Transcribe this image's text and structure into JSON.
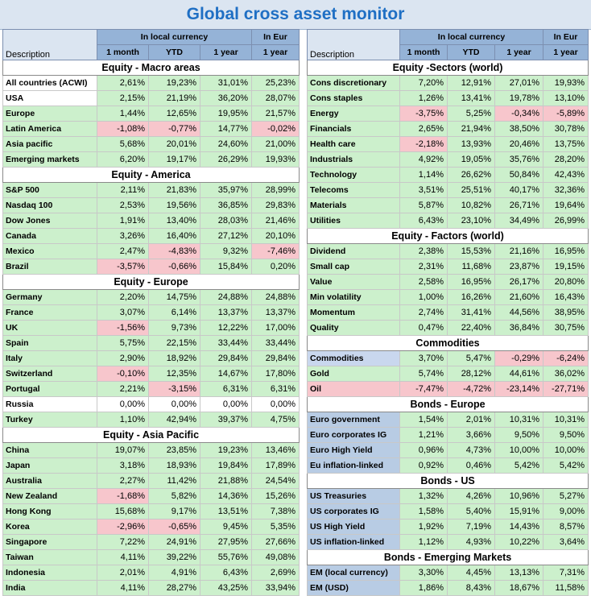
{
  "title": "Global cross asset monitor",
  "header": {
    "description": "Description",
    "local_currency": "In local currency",
    "in_eur": "In Eur",
    "one_month": "1 month",
    "ytd": "YTD",
    "one_year": "1 year",
    "one_year_eur": "1 year"
  },
  "colors": {
    "positive": "#ccf0cc",
    "negative": "#f7c6cc",
    "header": "#95b3d7",
    "title_text": "#1f6fc4"
  },
  "left": [
    {
      "title": "Equity - Macro areas",
      "rows": [
        {
          "d": "All countries (ACWI)",
          "v": [
            "2,61%",
            "19,23%",
            "31,01%",
            "25,23%"
          ],
          "dc": "plain"
        },
        {
          "d": "USA",
          "v": [
            "2,15%",
            "21,19%",
            "36,20%",
            "28,07%"
          ],
          "dc": "plain"
        },
        {
          "d": "Europe",
          "v": [
            "1,44%",
            "12,65%",
            "19,95%",
            "21,57%"
          ],
          "dc": "green"
        },
        {
          "d": "Latin America",
          "v": [
            "-1,08%",
            "-0,77%",
            "14,77%",
            "-0,02%"
          ],
          "dc": "green"
        },
        {
          "d": "Asia pacific",
          "v": [
            "5,68%",
            "20,01%",
            "24,60%",
            "21,00%"
          ],
          "dc": "green"
        },
        {
          "d": "Emerging markets",
          "v": [
            "6,20%",
            "19,17%",
            "26,29%",
            "19,93%"
          ],
          "dc": "green"
        }
      ]
    },
    {
      "title": "Equity - America",
      "rows": [
        {
          "d": "S&P 500",
          "v": [
            "2,11%",
            "21,83%",
            "35,97%",
            "28,99%"
          ],
          "dc": "green"
        },
        {
          "d": "Nasdaq 100",
          "v": [
            "2,53%",
            "19,56%",
            "36,85%",
            "29,83%"
          ],
          "dc": "green"
        },
        {
          "d": "Dow Jones",
          "v": [
            "1,91%",
            "13,40%",
            "28,03%",
            "21,46%"
          ],
          "dc": "green"
        },
        {
          "d": "Canada",
          "v": [
            "3,26%",
            "16,40%",
            "27,12%",
            "20,10%"
          ],
          "dc": "green"
        },
        {
          "d": "Mexico",
          "v": [
            "2,47%",
            "-4,83%",
            "9,32%",
            "-7,46%"
          ],
          "dc": "green"
        },
        {
          "d": "Brazil",
          "v": [
            "-3,57%",
            "-0,66%",
            "15,84%",
            "0,20%"
          ],
          "dc": "green"
        }
      ]
    },
    {
      "title": "Equity - Europe",
      "rows": [
        {
          "d": "Germany",
          "v": [
            "2,20%",
            "14,75%",
            "24,88%",
            "24,88%"
          ],
          "dc": "green"
        },
        {
          "d": "France",
          "v": [
            "3,07%",
            "6,14%",
            "13,37%",
            "13,37%"
          ],
          "dc": "green"
        },
        {
          "d": "UK",
          "v": [
            "-1,56%",
            "9,73%",
            "12,22%",
            "17,00%"
          ],
          "dc": "green"
        },
        {
          "d": "Spain",
          "v": [
            "5,75%",
            "22,15%",
            "33,44%",
            "33,44%"
          ],
          "dc": "green"
        },
        {
          "d": "Italy",
          "v": [
            "2,90%",
            "18,92%",
            "29,84%",
            "29,84%"
          ],
          "dc": "green"
        },
        {
          "d": "Switzerland",
          "v": [
            "-0,10%",
            "12,35%",
            "14,67%",
            "17,80%"
          ],
          "dc": "green"
        },
        {
          "d": "Portugal",
          "v": [
            "2,21%",
            "-3,15%",
            "6,31%",
            "6,31%"
          ],
          "dc": "green"
        },
        {
          "d": "Russia",
          "v": [
            "0,00%",
            "0,00%",
            "0,00%",
            "0,00%"
          ],
          "dc": "plain"
        },
        {
          "d": "Turkey",
          "v": [
            "1,10%",
            "42,94%",
            "39,37%",
            "4,75%"
          ],
          "dc": "green"
        }
      ]
    },
    {
      "title": "Equity - Asia Pacific",
      "rows": [
        {
          "d": "China",
          "v": [
            "19,07%",
            "23,85%",
            "19,23%",
            "13,46%"
          ],
          "dc": "green"
        },
        {
          "d": "Japan",
          "v": [
            "3,18%",
            "18,93%",
            "19,84%",
            "17,89%"
          ],
          "dc": "green"
        },
        {
          "d": "Australia",
          "v": [
            "2,27%",
            "11,42%",
            "21,88%",
            "24,54%"
          ],
          "dc": "green"
        },
        {
          "d": "New Zealand",
          "v": [
            "-1,68%",
            "5,82%",
            "14,36%",
            "15,26%"
          ],
          "dc": "green"
        },
        {
          "d": "Hong Kong",
          "v": [
            "15,68%",
            "9,17%",
            "13,51%",
            "7,38%"
          ],
          "dc": "green"
        },
        {
          "d": "Korea",
          "v": [
            "-2,96%",
            "-0,65%",
            "9,45%",
            "5,35%"
          ],
          "dc": "green"
        },
        {
          "d": "Singapore",
          "v": [
            "7,22%",
            "24,91%",
            "27,95%",
            "27,66%"
          ],
          "dc": "green"
        },
        {
          "d": "Taiwan",
          "v": [
            "4,11%",
            "39,22%",
            "55,76%",
            "49,08%"
          ],
          "dc": "green"
        },
        {
          "d": "Indonesia",
          "v": [
            "2,01%",
            "4,91%",
            "6,43%",
            "2,69%"
          ],
          "dc": "green"
        },
        {
          "d": "India",
          "v": [
            "4,11%",
            "28,27%",
            "43,25%",
            "33,94%"
          ],
          "dc": "green"
        }
      ]
    }
  ],
  "right": [
    {
      "title": "Equity -Sectors (world)",
      "rows": [
        {
          "d": "Cons discretionary",
          "v": [
            "7,20%",
            "12,91%",
            "27,01%",
            "19,93%"
          ],
          "dc": "green"
        },
        {
          "d": "Cons staples",
          "v": [
            "1,26%",
            "13,41%",
            "19,78%",
            "13,10%"
          ],
          "dc": "green"
        },
        {
          "d": "Energy",
          "v": [
            "-3,75%",
            "5,25%",
            "-0,34%",
            "-5,89%"
          ],
          "dc": "green"
        },
        {
          "d": "Financials",
          "v": [
            "2,65%",
            "21,94%",
            "38,50%",
            "30,78%"
          ],
          "dc": "green"
        },
        {
          "d": "Health care",
          "v": [
            "-2,18%",
            "13,93%",
            "20,46%",
            "13,75%"
          ],
          "dc": "green"
        },
        {
          "d": "Industrials",
          "v": [
            "4,92%",
            "19,05%",
            "35,76%",
            "28,20%"
          ],
          "dc": "green"
        },
        {
          "d": "Technology",
          "v": [
            "1,14%",
            "26,62%",
            "50,84%",
            "42,43%"
          ],
          "dc": "green"
        },
        {
          "d": "Telecoms",
          "v": [
            "3,51%",
            "25,51%",
            "40,17%",
            "32,36%"
          ],
          "dc": "green"
        },
        {
          "d": "Materials",
          "v": [
            "5,87%",
            "10,82%",
            "26,71%",
            "19,64%"
          ],
          "dc": "green"
        },
        {
          "d": "Utilities",
          "v": [
            "6,43%",
            "23,10%",
            "34,49%",
            "26,99%"
          ],
          "dc": "green"
        }
      ]
    },
    {
      "title": "Equity - Factors (world)",
      "rows": [
        {
          "d": "Dividend",
          "v": [
            "2,38%",
            "15,53%",
            "21,16%",
            "16,95%"
          ],
          "dc": "green"
        },
        {
          "d": "Small cap",
          "v": [
            "2,31%",
            "11,68%",
            "23,87%",
            "19,15%"
          ],
          "dc": "green"
        },
        {
          "d": "Value",
          "v": [
            "2,58%",
            "16,95%",
            "26,17%",
            "20,80%"
          ],
          "dc": "green"
        },
        {
          "d": "Min volatility",
          "v": [
            "1,00%",
            "16,26%",
            "21,60%",
            "16,43%"
          ],
          "dc": "green"
        },
        {
          "d": "Momentum",
          "v": [
            "2,74%",
            "31,41%",
            "44,56%",
            "38,95%"
          ],
          "dc": "green"
        },
        {
          "d": "Quality",
          "v": [
            "0,47%",
            "22,40%",
            "36,84%",
            "30,75%"
          ],
          "dc": "green"
        }
      ]
    },
    {
      "title": "Commodities",
      "rows": [
        {
          "d": "Commodities",
          "v": [
            "3,70%",
            "5,47%",
            "-0,29%",
            "-6,24%"
          ],
          "dc": "blue"
        },
        {
          "d": "Gold",
          "v": [
            "5,74%",
            "28,12%",
            "44,61%",
            "36,02%"
          ],
          "dc": "green"
        },
        {
          "d": "Oil",
          "v": [
            "-7,47%",
            "-4,72%",
            "-23,14%",
            "-27,71%"
          ],
          "dc": "pink"
        }
      ]
    },
    {
      "title": "Bonds - Europe",
      "rows": [
        {
          "d": "Euro government",
          "v": [
            "1,54%",
            "2,01%",
            "10,31%",
            "10,31%"
          ],
          "dc": "blue2"
        },
        {
          "d": "Euro corporates IG",
          "v": [
            "1,21%",
            "3,66%",
            "9,50%",
            "9,50%"
          ],
          "dc": "blue2"
        },
        {
          "d": "Euro High Yield",
          "v": [
            "0,96%",
            "4,73%",
            "10,00%",
            "10,00%"
          ],
          "dc": "blue2"
        },
        {
          "d": "Eu inflation-linked",
          "v": [
            "0,92%",
            "0,46%",
            "5,42%",
            "5,42%"
          ],
          "dc": "blue2"
        }
      ]
    },
    {
      "title": "Bonds - US",
      "rows": [
        {
          "d": "US Treasuries",
          "v": [
            "1,32%",
            "4,26%",
            "10,96%",
            "5,27%"
          ],
          "dc": "blue2"
        },
        {
          "d": "US corporates IG",
          "v": [
            "1,58%",
            "5,40%",
            "15,91%",
            "9,00%"
          ],
          "dc": "blue2"
        },
        {
          "d": "US High Yield",
          "v": [
            "1,92%",
            "7,19%",
            "14,43%",
            "8,57%"
          ],
          "dc": "blue2"
        },
        {
          "d": "US inflation-linked",
          "v": [
            "1,12%",
            "4,93%",
            "10,22%",
            "3,64%"
          ],
          "dc": "blue2"
        }
      ]
    },
    {
      "title": "Bonds - Emerging Markets",
      "rows": [
        {
          "d": "EM (local currency)",
          "v": [
            "3,30%",
            "4,45%",
            "13,13%",
            "7,31%"
          ],
          "dc": "blue2"
        },
        {
          "d": "EM (USD)",
          "v": [
            "1,86%",
            "8,43%",
            "18,67%",
            "11,58%"
          ],
          "dc": "blue2"
        }
      ]
    }
  ]
}
